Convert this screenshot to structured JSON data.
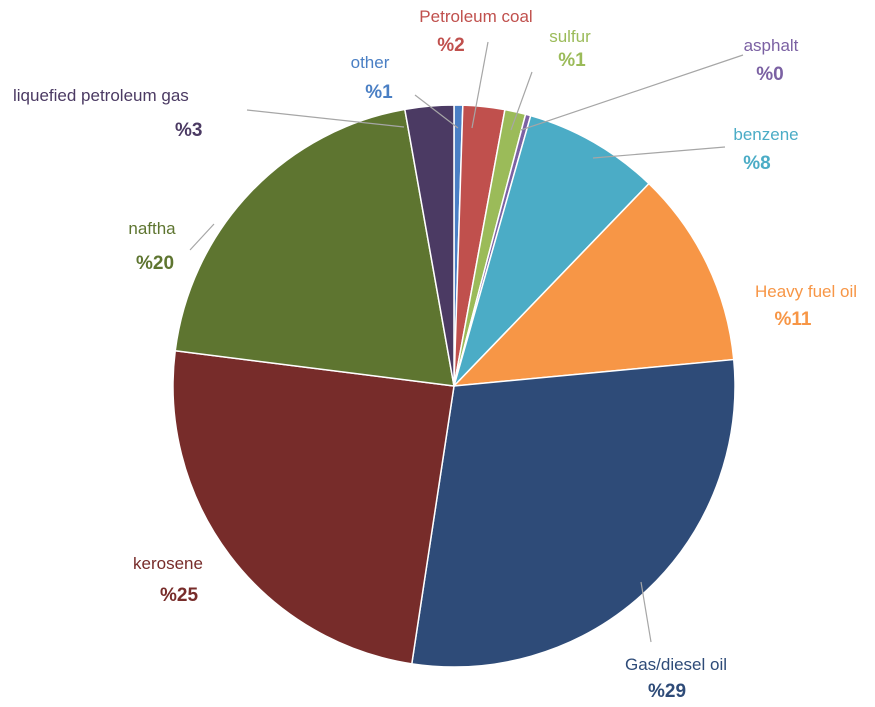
{
  "chart_data": {
    "type": "pie",
    "slices": [
      {
        "label": "other",
        "value_text": "%1",
        "value": 0.5,
        "color": "#4a7fc4"
      },
      {
        "label": "Petroleum coal",
        "value_text": "%2",
        "value": 2.4,
        "color": "#c0504d"
      },
      {
        "label": "sulfur",
        "value_text": "%1",
        "value": 1.2,
        "color": "#9bbb59"
      },
      {
        "label": "asphalt",
        "value_text": "%0",
        "value": 0.3,
        "color": "#7b61a3"
      },
      {
        "label": "benzene",
        "value_text": "%8",
        "value": 7.8,
        "color": "#4bacc6"
      },
      {
        "label": "Heavy fuel oil",
        "value_text": "%11",
        "value": 11.3,
        "color": "#f79646"
      },
      {
        "label": "Gas/diesel oil",
        "value_text": "%29",
        "value": 28.9,
        "color": "#2e4b78"
      },
      {
        "label": "kerosene",
        "value_text": "%25",
        "value": 24.6,
        "color": "#772c2a"
      },
      {
        "label": "naftha",
        "value_text": "%20",
        "value": 20.2,
        "color": "#5e7530"
      },
      {
        "label": "liquefied petroleum gas",
        "value_text": "%3",
        "value": 2.8,
        "color": "#4b3a63"
      }
    ]
  }
}
